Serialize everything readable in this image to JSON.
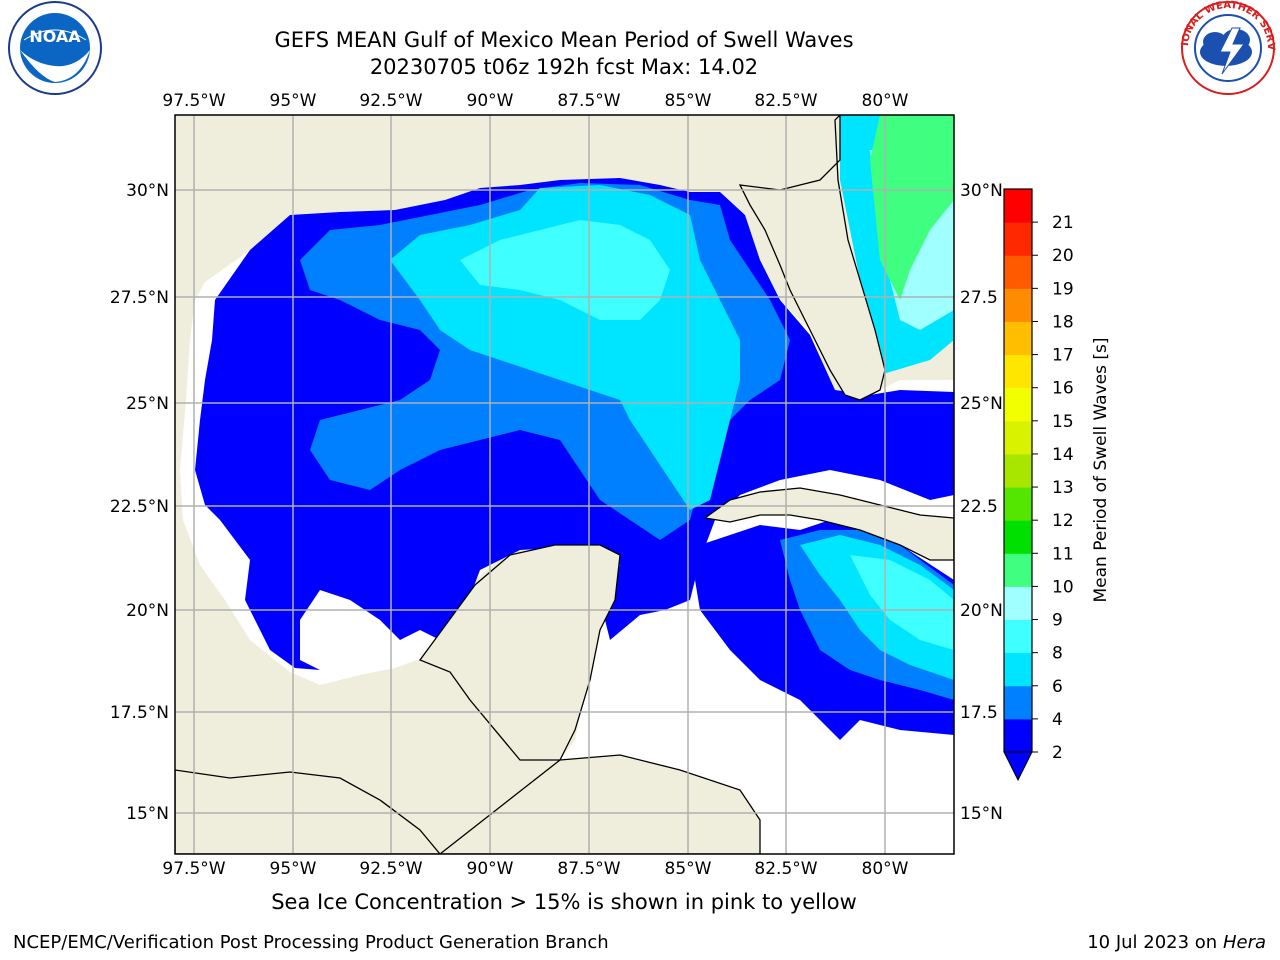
{
  "header": {
    "title_line1": "GEFS MEAN Gulf of Mexico Mean Period of Swell Waves",
    "title_line2": "20230705 t06z 192h fcst   Max: 14.02"
  },
  "logos": {
    "left": {
      "name": "noaa-logo",
      "text": "NOAA",
      "ring_text": "NATIONAL OCEANIC AND ATMOSPHERIC ADMINISTRATION · U.S. DEPARTMENT OF COMMERCE"
    },
    "right": {
      "name": "nws-logo",
      "ring_text": "NATIONAL WEATHER SERVICE"
    }
  },
  "map": {
    "lon_labels": [
      "97.5°W",
      "95°W",
      "92.5°W",
      "90°W",
      "87.5°W",
      "85°W",
      "82.5°W",
      "80°W"
    ],
    "lon_values": [
      -97.5,
      -95,
      -92.5,
      -90,
      -87.5,
      -85,
      -82.5,
      -80
    ],
    "lat_labels_left": [
      "30°N",
      "27.5°N",
      "25°N",
      "22.5°N",
      "20°N",
      "17.5°N",
      "15°N"
    ],
    "lat_labels_right": [
      "30°N",
      "27.5",
      "25°N",
      "22.5",
      "20°N",
      "17.5",
      "15°N"
    ],
    "lat_values": [
      30,
      27.5,
      25,
      22.5,
      20,
      17.5,
      15
    ],
    "extent": {
      "lon_min": -98,
      "lon_max": -78.2,
      "lat_min": 14.0,
      "lat_max": 31.8
    },
    "colors": {
      "land": "#efeedc",
      "ocean_nodata": "#ffffff",
      "grid": "#b0b0b0"
    }
  },
  "colorbar": {
    "label": "Mean Period of Swell Waves [s]",
    "tick_labels": [
      "2",
      "4",
      "6",
      "8",
      "9",
      "10",
      "11",
      "12",
      "13",
      "14",
      "15",
      "16",
      "17",
      "18",
      "19",
      "20",
      "21"
    ],
    "colors": [
      "#0000ff",
      "#0080ff",
      "#00e5ff",
      "#40ffff",
      "#a0ffff",
      "#40ff80",
      "#00e000",
      "#55e600",
      "#a8e600",
      "#d9f200",
      "#f2ff00",
      "#ffe600",
      "#ffbf00",
      "#ff8c00",
      "#ff5a00",
      "#ff2800",
      "#ff0000"
    ],
    "extend_color": "#0000ff"
  },
  "caption": "Sea Ice Concentration > 15% is shown in pink to yellow",
  "footer": {
    "left": "NCEP/EMC/Verification Post Processing Product Generation Branch",
    "right_date": "10 Jul 2023 on ",
    "right_host": "Hera"
  }
}
